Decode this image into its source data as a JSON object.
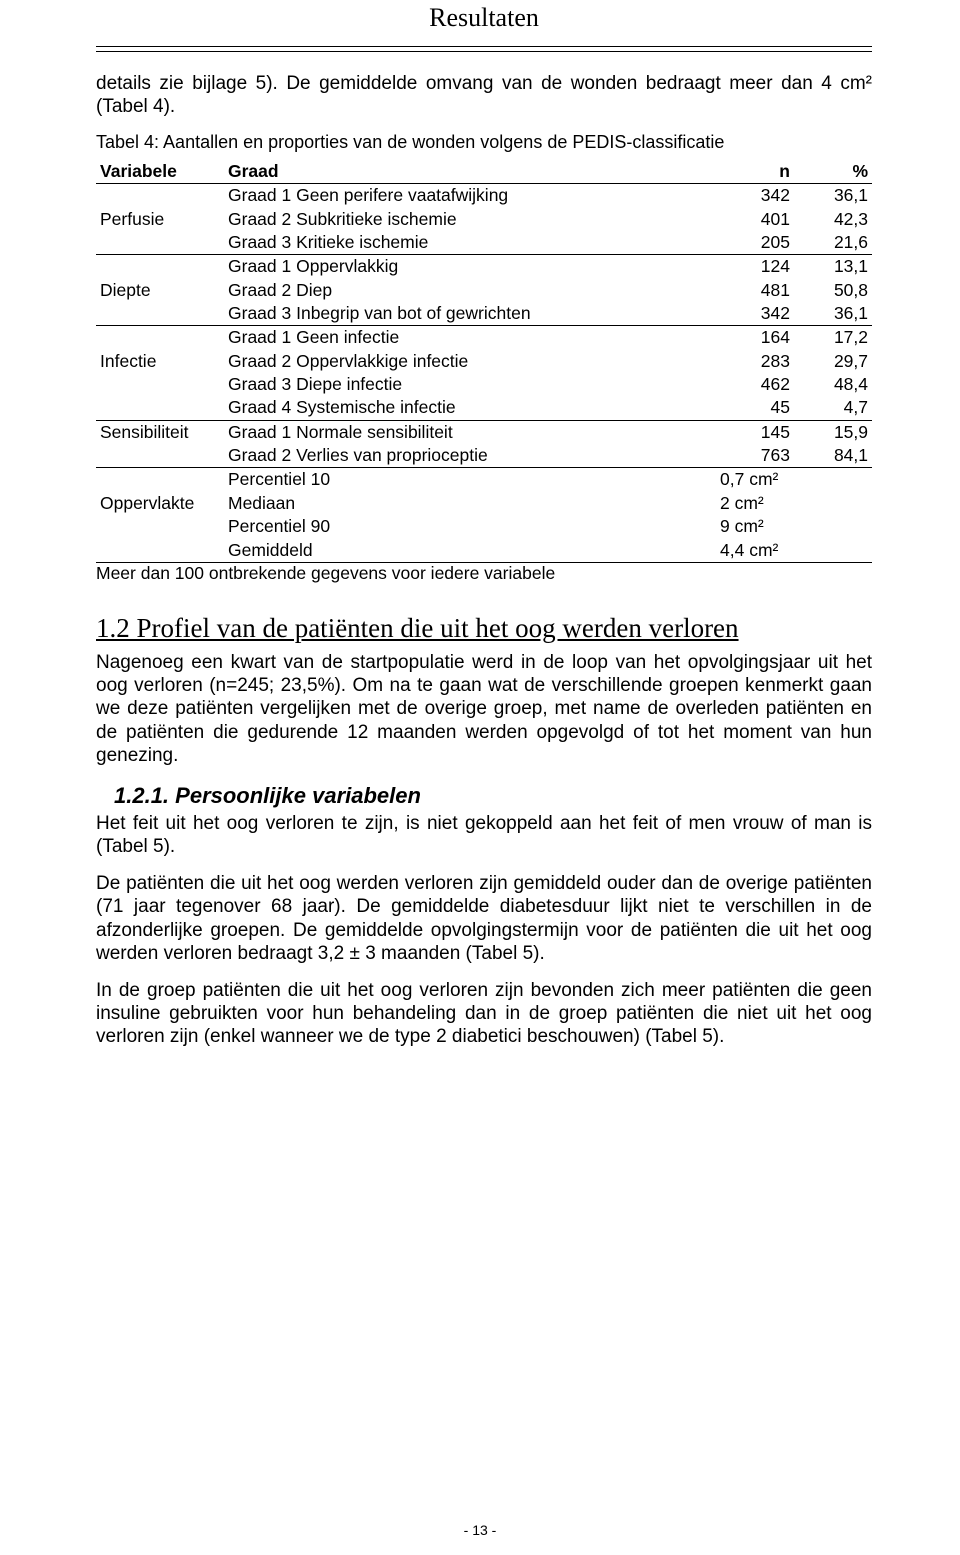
{
  "header": {
    "title": "Resultaten"
  },
  "intro": {
    "text": "details zie bijlage 5). De gemiddelde omvang van de wonden bedraagt meer dan 4 cm² (Tabel 4)."
  },
  "table": {
    "title": "Tabel 4: Aantallen en proporties van de wonden volgens de PEDIS-classificatie",
    "headers": {
      "c0": "Variabele",
      "c1": "Graad",
      "c2": "n",
      "c3": "%"
    },
    "groups": [
      {
        "label": "Perfusie",
        "rows": [
          {
            "graad": "Graad 1 Geen perifere vaatafwijking",
            "n": "342",
            "pct": "36,1"
          },
          {
            "graad": "Graad 2 Subkritieke ischemie",
            "n": "401",
            "pct": "42,3"
          },
          {
            "graad": "Graad 3 Kritieke ischemie",
            "n": "205",
            "pct": "21,6"
          }
        ]
      },
      {
        "label": "Diepte",
        "rows": [
          {
            "graad": "Graad 1 Oppervlakkig",
            "n": "124",
            "pct": "13,1"
          },
          {
            "graad": "Graad 2 Diep",
            "n": "481",
            "pct": "50,8"
          },
          {
            "graad": "Graad 3 Inbegrip van bot of gewrichten",
            "n": "342",
            "pct": "36,1"
          }
        ]
      },
      {
        "label": "Infectie",
        "rows": [
          {
            "graad": "Graad 1 Geen infectie",
            "n": "164",
            "pct": "17,2"
          },
          {
            "graad": "Graad 2 Oppervlakkige infectie",
            "n": "283",
            "pct": "29,7"
          },
          {
            "graad": "Graad 3 Diepe infectie",
            "n": "462",
            "pct": "48,4"
          },
          {
            "graad": "Graad 4 Systemische infectie",
            "n": "45",
            "pct": "4,7"
          }
        ]
      },
      {
        "label": "Sensibiliteit",
        "rows": [
          {
            "graad": "Graad 1 Normale sensibiliteit",
            "n": "145",
            "pct": "15,9"
          },
          {
            "graad": "Graad 2 Verlies van proprioceptie",
            "n": "763",
            "pct": "84,1"
          }
        ]
      },
      {
        "label": "Oppervlakte",
        "rows": [
          {
            "graad": "Percentiel 10",
            "n": "0,7 cm²",
            "pct": ""
          },
          {
            "graad": "Mediaan",
            "n": "2 cm²",
            "pct": ""
          },
          {
            "graad": "Percentiel 90",
            "n": "9 cm²",
            "pct": ""
          },
          {
            "graad": "Gemiddeld",
            "n": "4,4 cm²",
            "pct": ""
          }
        ]
      }
    ],
    "footer": "Meer dan 100 ontbrekende gegevens voor iedere variabele"
  },
  "section": {
    "heading": "1.2 Profiel van de patiënten die uit het oog werden verloren",
    "p1": "Nagenoeg een kwart van de startpopulatie werd in de loop van het opvolgingsjaar uit het oog verloren (n=245; 23,5%). Om na te gaan wat de verschillende groepen kenmerkt gaan we deze patiënten vergelijken met de overige groep, met name de overleden patiënten en de patiënten die gedurende 12 maanden werden opgevolgd of tot het moment van hun genezing."
  },
  "subsection": {
    "heading": "1.2.1.  Persoonlijke variabelen",
    "p1": "Het feit uit het oog verloren te zijn, is niet gekoppeld aan het feit of men vrouw of man is (Tabel 5).",
    "p2": "De patiënten die uit het oog werden verloren zijn gemiddeld ouder dan de overige patiënten (71 jaar tegenover 68 jaar). De gemiddelde diabetesduur lijkt niet te verschillen in de afzonderlijke groepen. De gemiddelde opvolgingstermijn voor de patiënten die uit het oog werden verloren bedraagt 3,2 ± 3 maanden (Tabel 5).",
    "p3": "In de groep patiënten die uit het oog verloren zijn bevonden zich meer patiënten die geen insuline gebruikten voor hun behandeling dan in de groep patiënten die niet uit het oog verloren zijn (enkel wanneer we de type 2 diabetici beschouwen) (Tabel 5)."
  },
  "page": {
    "number": "- 13 -"
  }
}
